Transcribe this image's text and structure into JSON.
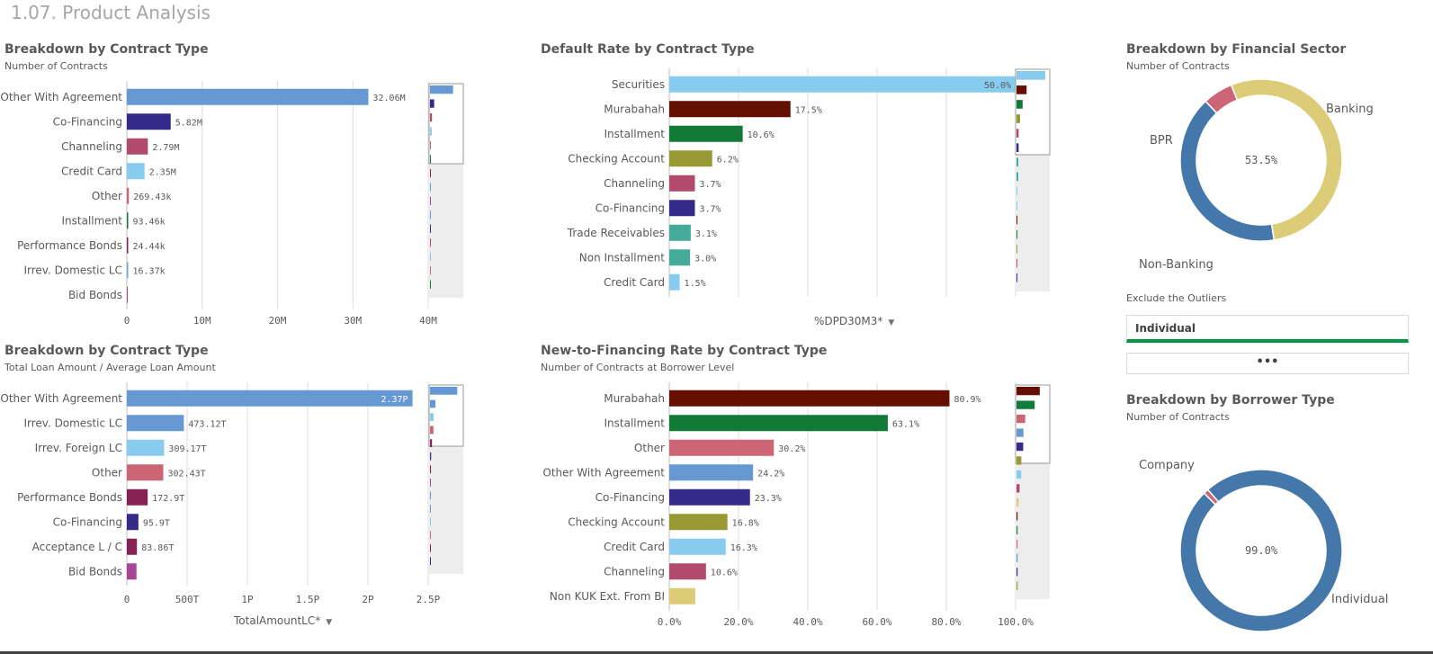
{
  "page": {
    "title": "1.07. Product Analysis"
  },
  "colors": {
    "accent_green": "#009845",
    "minimap_bg": "#ededed",
    "minimap_border": "#9a9a9a"
  },
  "panels": {
    "p1": {
      "title": "Breakdown by Contract Type",
      "subtitle": "Number of Contracts"
    },
    "p2": {
      "title": "Default Rate by Contract Type",
      "measure": "%DPD30M3*"
    },
    "p3": {
      "title": "Breakdown by Financial Sector",
      "subtitle": "Number of Contracts"
    },
    "p4": {
      "title": "Breakdown by Contract Type",
      "subtitle": "Total Loan Amount / Average Loan Amount",
      "measure": "TotalAmountLC*"
    },
    "p5": {
      "title": "New-to-Financing Rate by Contract Type",
      "subtitle": "Number of Contracts at Borrower Level"
    },
    "p6": {
      "title": "Breakdown by Borrower Type",
      "subtitle": "Number of Contracts"
    }
  },
  "filter": {
    "label": "Exclude the Outliers",
    "selected": "Individual",
    "more": "•••"
  },
  "chart_data": [
    {
      "id": "contracts",
      "type": "bar",
      "orientation": "horizontal",
      "title": "Breakdown by Contract Type",
      "subtitle": "Number of Contracts",
      "categories": [
        "Other With Agreement",
        "Co-Financing",
        "Channeling",
        "Credit Card",
        "Other",
        "Installment",
        "Performance Bonds",
        "Irrev. Domestic LC",
        "Bid Bonds"
      ],
      "values": [
        32060000,
        5820000,
        2790000,
        2350000,
        269430,
        93460,
        24440,
        16370,
        0
      ],
      "labels": [
        "32.06M",
        "5.82M",
        "2.79M",
        "2.35M",
        "269.43k",
        "93.46k",
        "24.44k",
        "16.37k",
        ""
      ],
      "colors": [
        "#6699d4",
        "#332a8a",
        "#b24a6e",
        "#87ccee",
        "#cc6677",
        "#127a37",
        "#882255",
        "#66aadd",
        "#aa4499"
      ],
      "xlim": [
        0,
        40000000
      ],
      "ticks": [
        0,
        10000000,
        20000000,
        30000000,
        40000000
      ],
      "tick_labels": [
        "0",
        "10M",
        "20M",
        "30M",
        "40M"
      ]
    },
    {
      "id": "default_rate",
      "type": "bar",
      "orientation": "horizontal",
      "title": "Default Rate by Contract Type",
      "measure": "%DPD30M3*",
      "categories": [
        "Securities",
        "Murabahah",
        "Installment",
        "Checking Account",
        "Channeling",
        "Co-Financing",
        "Trade Receivables",
        "Non Installment",
        "Credit Card"
      ],
      "values": [
        50.0,
        17.5,
        10.6,
        6.2,
        3.7,
        3.7,
        3.1,
        3.0,
        1.5
      ],
      "labels": [
        "50.0%",
        "17.5%",
        "10.6%",
        "6.2%",
        "3.7%",
        "3.7%",
        "3.1%",
        "3.0%",
        "1.5%"
      ],
      "colors": [
        "#87ccee",
        "#650f00",
        "#127a37",
        "#999933",
        "#b24a6e",
        "#332a8a",
        "#44aa99",
        "#44aa99",
        "#87ccee"
      ],
      "xlim": [
        0,
        50
      ]
    },
    {
      "id": "financial_sector",
      "type": "pie",
      "donut": true,
      "title": "Breakdown by Financial Sector",
      "subtitle": "Number of Contracts",
      "slices": [
        {
          "label": "Banking",
          "value": 53.5,
          "color": "#ddcc77"
        },
        {
          "label": "Non-Banking",
          "value": 40.5,
          "color": "#4477aa"
        },
        {
          "label": "BPR",
          "value": 6.0,
          "color": "#cc6677"
        }
      ],
      "center_label": "53.5%"
    },
    {
      "id": "loan_amount",
      "type": "bar",
      "orientation": "horizontal",
      "title": "Breakdown by Contract Type",
      "subtitle": "Total Loan Amount / Average Loan Amount",
      "measure": "TotalAmountLC*",
      "categories": [
        "Other With Agreement",
        "Irrev. Domestic LC",
        "Irrev. Foreign LC",
        "Other",
        "Performance Bonds",
        "Co-Financing",
        "Acceptance L / C",
        "Bid Bonds"
      ],
      "values": [
        2370,
        473.12,
        309.17,
        302.43,
        172.9,
        95.9,
        83.86,
        80
      ],
      "labels": [
        "2.37P",
        "473.12T",
        "309.17T",
        "302.43T",
        "172.9T",
        "95.9T",
        "83.86T",
        ""
      ],
      "colors": [
        "#6699d4",
        "#6699d4",
        "#87ccee",
        "#cc6677",
        "#882255",
        "#332a8a",
        "#882255",
        "#aa4499"
      ],
      "xlim": [
        0,
        2500
      ],
      "ticks": [
        0,
        500,
        1000,
        1500,
        2000,
        2500
      ],
      "tick_labels": [
        "0",
        "500T",
        "1P",
        "1.5P",
        "2P",
        "2.5P"
      ]
    },
    {
      "id": "new_to_financing",
      "type": "bar",
      "orientation": "horizontal",
      "title": "New-to-Financing Rate by Contract Type",
      "subtitle": "Number of Contracts at Borrower Level",
      "categories": [
        "Murabahah",
        "Installment",
        "Other",
        "Other With Agreement",
        "Co-Financing",
        "Checking Account",
        "Credit Card",
        "Channeling",
        "Non KUK Ext. From BI"
      ],
      "values": [
        80.9,
        63.1,
        30.2,
        24.2,
        23.3,
        16.8,
        16.3,
        10.6,
        7.5
      ],
      "labels": [
        "80.9%",
        "63.1%",
        "30.2%",
        "24.2%",
        "23.3%",
        "16.8%",
        "16.3%",
        "10.6%",
        ""
      ],
      "colors": [
        "#650f00",
        "#127a37",
        "#cc6677",
        "#6699d4",
        "#332a8a",
        "#999933",
        "#87ccee",
        "#b24a6e",
        "#ddcc77"
      ],
      "xlim": [
        0,
        100
      ],
      "ticks": [
        0,
        20,
        40,
        60,
        80,
        100
      ],
      "tick_labels": [
        "0.0%",
        "20.0%",
        "40.0%",
        "60.0%",
        "80.0%",
        "100.0%"
      ]
    },
    {
      "id": "borrower_type",
      "type": "pie",
      "donut": true,
      "title": "Breakdown by Borrower Type",
      "subtitle": "Number of Contracts",
      "slices": [
        {
          "label": "Individual",
          "value": 99.0,
          "color": "#4477aa"
        },
        {
          "label": "Company",
          "value": 1.0,
          "color": "#cc6677"
        }
      ],
      "center_label": "99.0%"
    }
  ]
}
